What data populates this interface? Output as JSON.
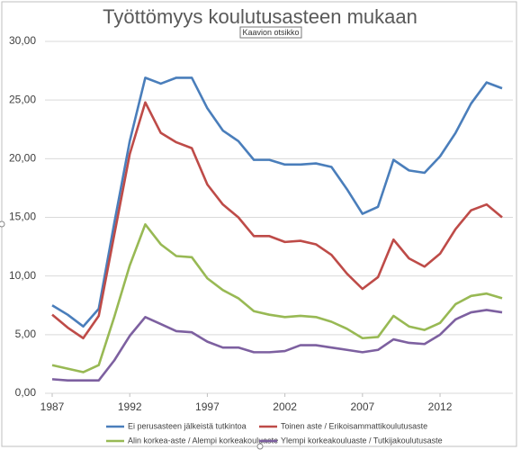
{
  "chart_data": {
    "type": "line",
    "title": "Työttömyys koulutusasteen mukaan",
    "tooltip": "Kaavion otsikko",
    "x": [
      1987,
      1988,
      1989,
      1990,
      1991,
      1992,
      1993,
      1994,
      1995,
      1996,
      1997,
      1998,
      1999,
      2000,
      2001,
      2002,
      2003,
      2004,
      2005,
      2006,
      2007,
      2008,
      2009,
      2010,
      2011,
      2012,
      2013,
      2014,
      2015,
      2016
    ],
    "xlim": [
      1987,
      2016
    ],
    "xticks": [
      1987,
      1992,
      1997,
      2002,
      2007,
      2012
    ],
    "ylim": [
      0,
      30
    ],
    "yticks": [
      {
        "value": 0,
        "label": "0,00"
      },
      {
        "value": 5,
        "label": "5,00"
      },
      {
        "value": 10,
        "label": "10,00"
      },
      {
        "value": 15,
        "label": "15,00"
      },
      {
        "value": 20,
        "label": "20,00"
      },
      {
        "value": 25,
        "label": "25,00"
      },
      {
        "value": 30,
        "label": "30,00"
      }
    ],
    "grid": true,
    "series": [
      {
        "name": "Ei perusasteen jälkeistä tutkintoa",
        "color": "#4a7ebb",
        "values": [
          7.5,
          6.7,
          5.7,
          7.2,
          14.5,
          21.5,
          26.9,
          26.4,
          26.9,
          26.9,
          24.3,
          22.4,
          21.5,
          19.9,
          19.9,
          19.5,
          19.5,
          19.6,
          19.3,
          17.4,
          15.3,
          15.9,
          19.9,
          19.0,
          18.8,
          20.2,
          22.2,
          24.7,
          26.5,
          26.0
        ]
      },
      {
        "name": "Toinen aste / Erikoisammattikoulutusaste",
        "color": "#be4b48",
        "values": [
          6.7,
          5.6,
          4.7,
          6.6,
          13.5,
          20.4,
          24.8,
          22.2,
          21.4,
          20.9,
          17.8,
          16.1,
          15.0,
          13.4,
          13.4,
          12.9,
          13.0,
          12.7,
          11.8,
          10.2,
          8.9,
          9.9,
          13.1,
          11.5,
          10.8,
          11.9,
          14.0,
          15.6,
          16.1,
          15.0
        ]
      },
      {
        "name": "Alin korkea-aste / Alempi korkeakouluaste",
        "color": "#98b954",
        "values": [
          2.4,
          2.1,
          1.8,
          2.4,
          6.5,
          10.9,
          14.4,
          12.7,
          11.7,
          11.6,
          9.8,
          8.8,
          8.1,
          7.0,
          6.7,
          6.5,
          6.6,
          6.5,
          6.1,
          5.5,
          4.7,
          4.8,
          6.6,
          5.7,
          5.4,
          6.0,
          7.6,
          8.3,
          8.5,
          8.1
        ]
      },
      {
        "name": "Ylempi korkeakouluaste / Tutkijakoulutusaste",
        "color": "#7d60a0",
        "values": [
          1.2,
          1.1,
          1.1,
          1.1,
          2.8,
          4.9,
          6.5,
          5.9,
          5.3,
          5.2,
          4.4,
          3.9,
          3.9,
          3.5,
          3.5,
          3.6,
          4.1,
          4.1,
          3.9,
          3.7,
          3.5,
          3.7,
          4.6,
          4.3,
          4.2,
          5.0,
          6.3,
          6.9,
          7.1,
          6.9
        ]
      }
    ]
  }
}
